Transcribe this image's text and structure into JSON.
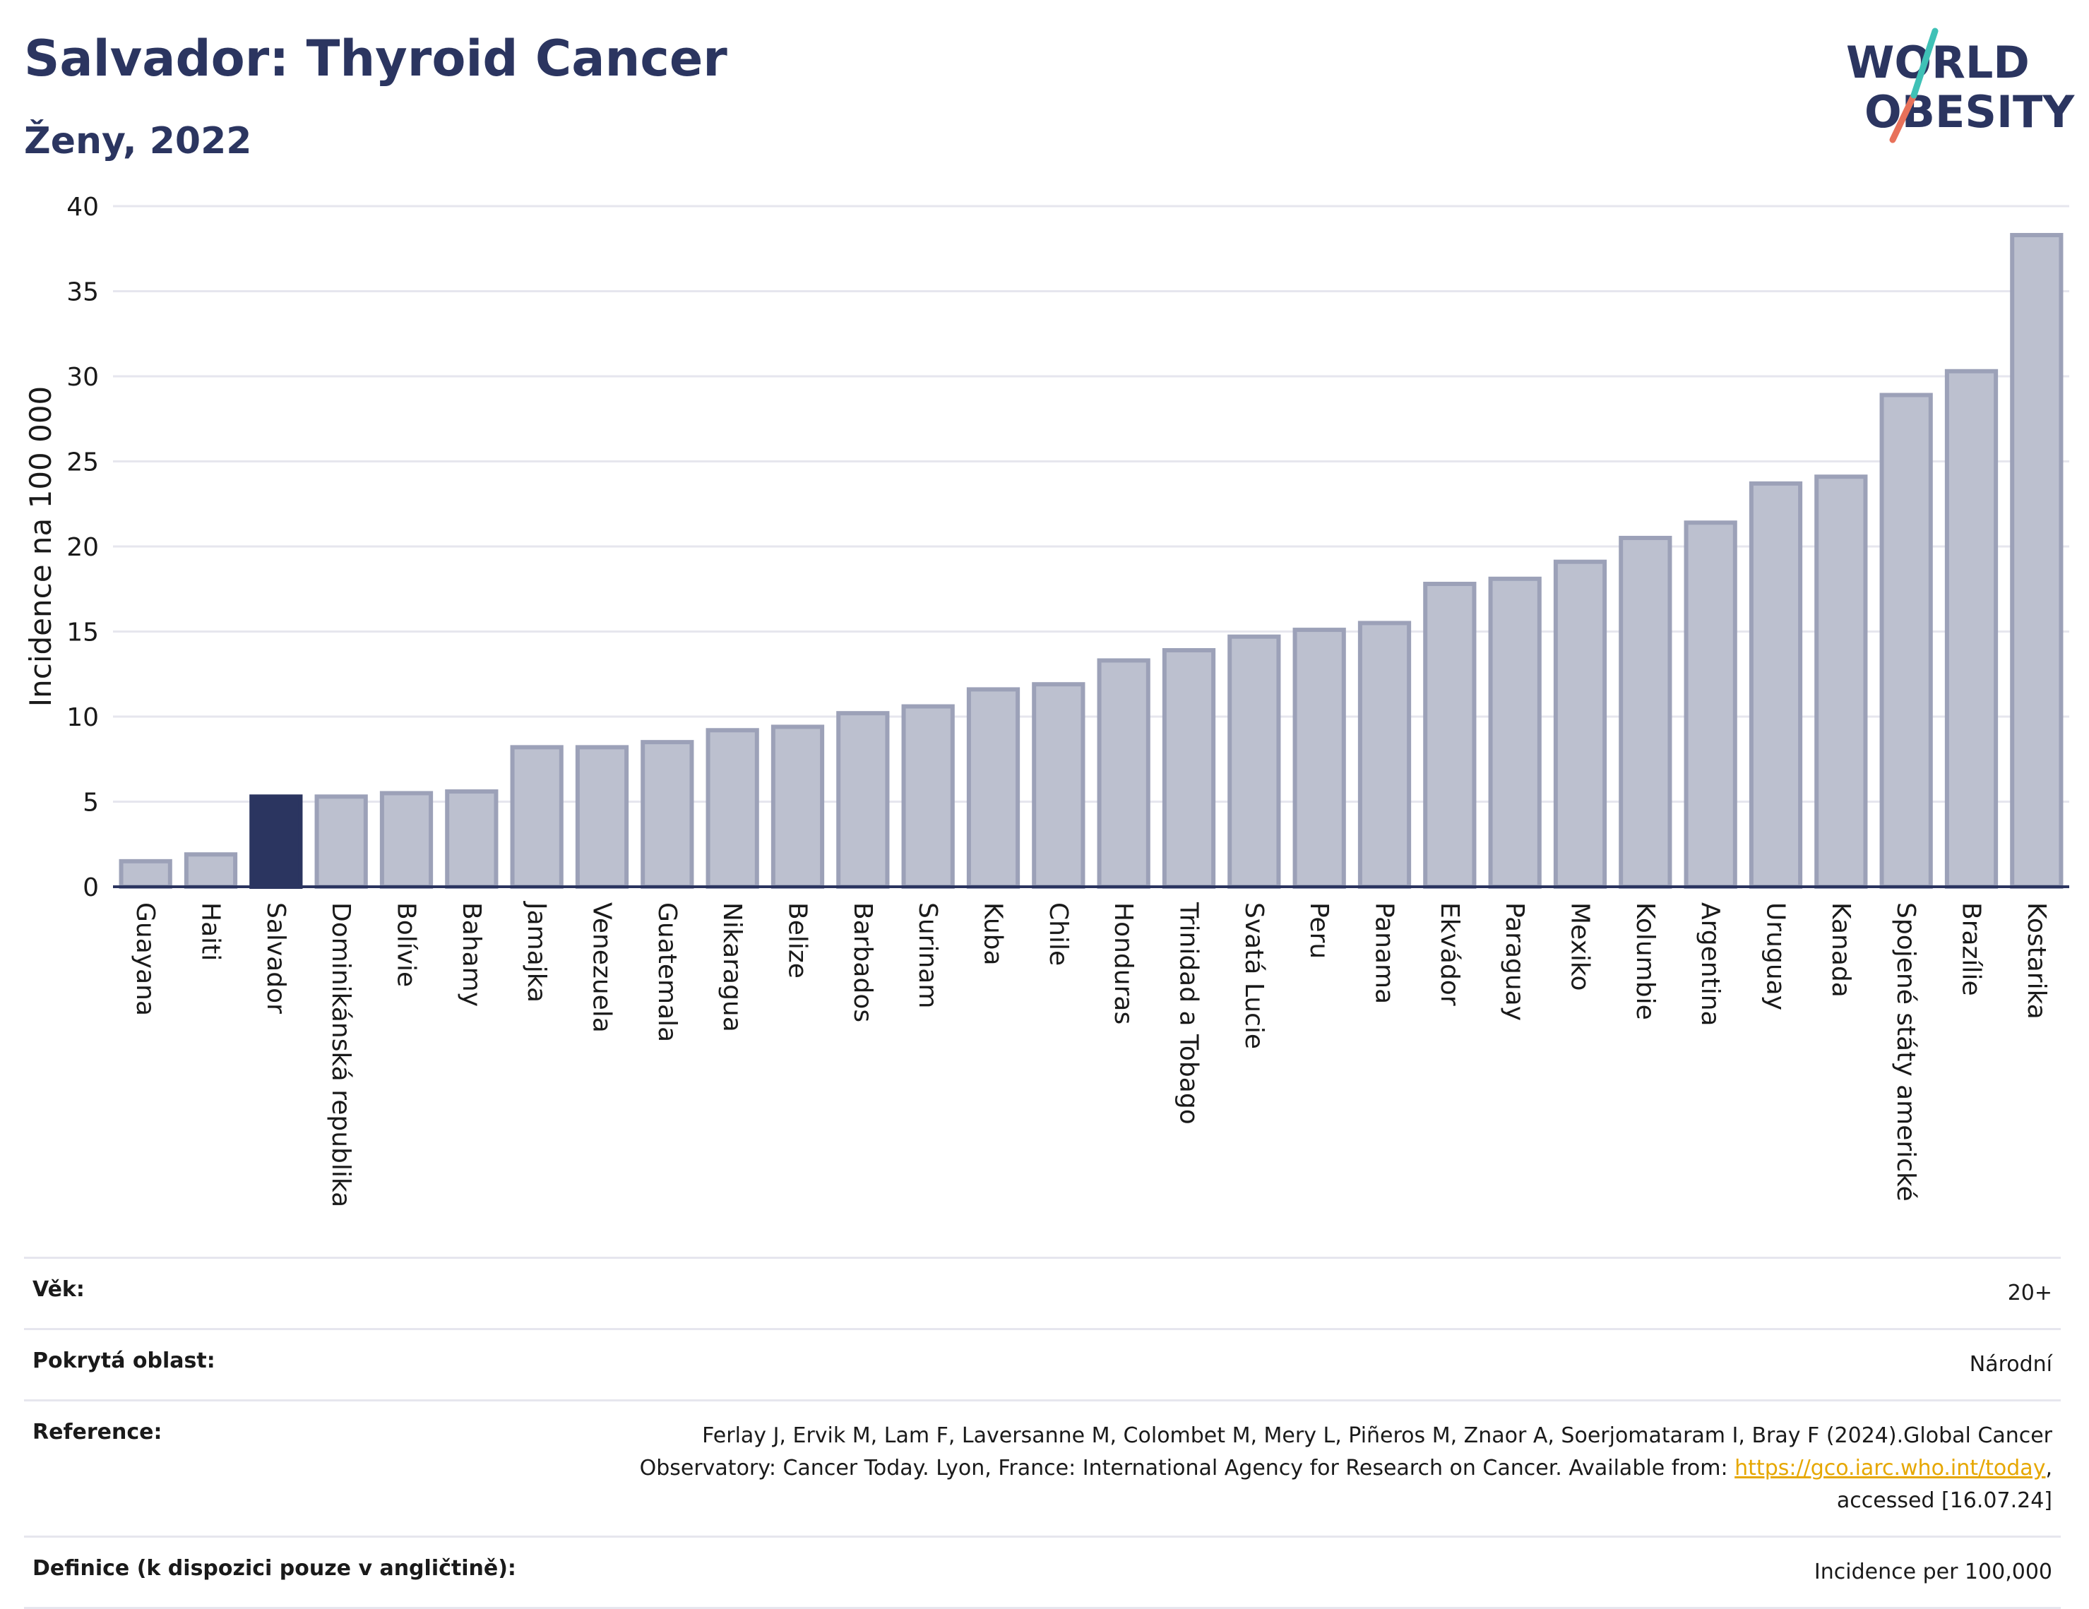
{
  "header": {
    "title": "Salvador: Thyroid Cancer",
    "subtitle": "Ženy, 2022"
  },
  "logo": {
    "line1": "WORLD",
    "line2": "OBESITY"
  },
  "chart_data": {
    "type": "bar",
    "ylabel": "Incidence na 100 000",
    "xlabel": "",
    "ylim": [
      0,
      40
    ],
    "yticks": [
      0,
      5,
      10,
      15,
      20,
      25,
      30,
      35,
      40
    ],
    "grid": true,
    "highlight": "Salvador",
    "colors": {
      "bar": "#bcc0cf",
      "bar_border": "#9ca1b8",
      "highlight": "#2b3560",
      "grid": "#e6e6ee",
      "axis": "#2b3560"
    },
    "categories": [
      "Guayana",
      "Haiti",
      "Salvador",
      "Dominikánská republika",
      "Bolívie",
      "Bahamy",
      "Jamajka",
      "Venezuela",
      "Guatemala",
      "Nikaragua",
      "Belize",
      "Barbados",
      "Surinam",
      "Kuba",
      "Chile",
      "Honduras",
      "Trinidad a Tobago",
      "Svatá Lucie",
      "Peru",
      "Panama",
      "Ekvádor",
      "Paraguay",
      "Mexiko",
      "Kolumbie",
      "Argentina",
      "Uruguay",
      "Kanada",
      "Spojené státy americké",
      "Brazílie",
      "Kostarika"
    ],
    "values": [
      1.5,
      1.9,
      5.3,
      5.3,
      5.5,
      5.6,
      8.2,
      8.2,
      8.5,
      9.2,
      9.4,
      10.2,
      10.6,
      11.6,
      11.9,
      13.3,
      13.9,
      14.7,
      15.1,
      15.5,
      17.8,
      18.1,
      19.1,
      20.5,
      21.4,
      23.7,
      24.1,
      28.9,
      30.3,
      38.3
    ]
  },
  "meta": {
    "age_label": "Věk:",
    "age_value": "20+",
    "coverage_label": "Pokrytá oblast:",
    "coverage_value": "Národní",
    "reference_label": "Reference:",
    "reference_text": "Ferlay J, Ervik M, Lam F, Laversanne M, Colombet M, Mery L, Piñeros M, Znaor A, Soerjomataram I, Bray F (2024).Global Cancer Observatory: Cancer Today. Lyon, France: International Agency for Research on Cancer. Available from:",
    "reference_link": "https://gco.iarc.who.int/today",
    "reference_suffix": ", accessed [16.07.24]",
    "definition_label": "Definice (k dispozici pouze v angličtině):",
    "definition_value": "Incidence per 100,000"
  }
}
